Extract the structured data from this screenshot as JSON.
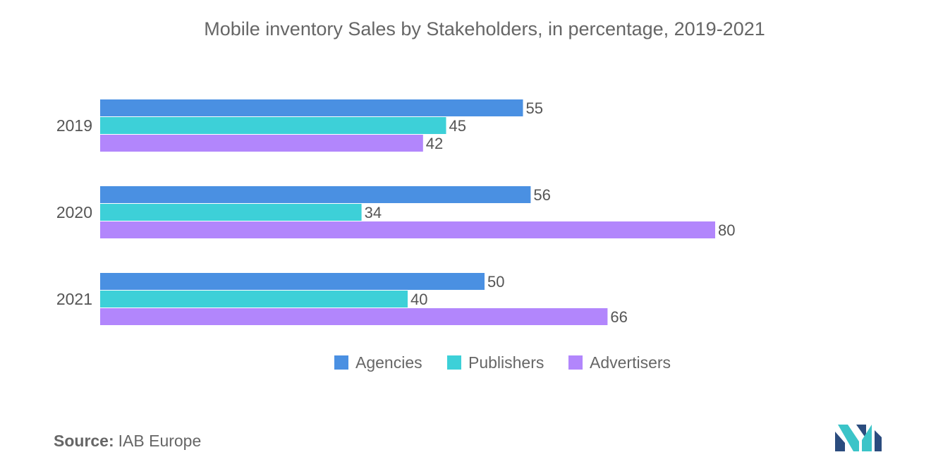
{
  "colors": {
    "agencies": "#4a90e2",
    "publishers": "#3dd0d8",
    "advertisers": "#b286fc",
    "logo_dark": "#2b4c7e",
    "logo_light": "#3bc4c8"
  },
  "chart_data": {
    "type": "bar",
    "orientation": "horizontal",
    "title": "Mobile inventory Sales by Stakeholders, in percentage, 2019-2021",
    "categories": [
      "2019",
      "2020",
      "2021"
    ],
    "series": [
      {
        "name": "Agencies",
        "values": [
          55,
          56,
          50
        ]
      },
      {
        "name": "Publishers",
        "values": [
          45,
          34,
          40
        ]
      },
      {
        "name": "Advertisers",
        "values": [
          42,
          80,
          66
        ]
      }
    ],
    "xlim": [
      0,
      100
    ],
    "grid": false,
    "legend": "bottom"
  },
  "source": {
    "label": "Source:",
    "value": "IAB Europe"
  },
  "logo": {
    "icon": "mordor-intelligence-logo-icon"
  }
}
